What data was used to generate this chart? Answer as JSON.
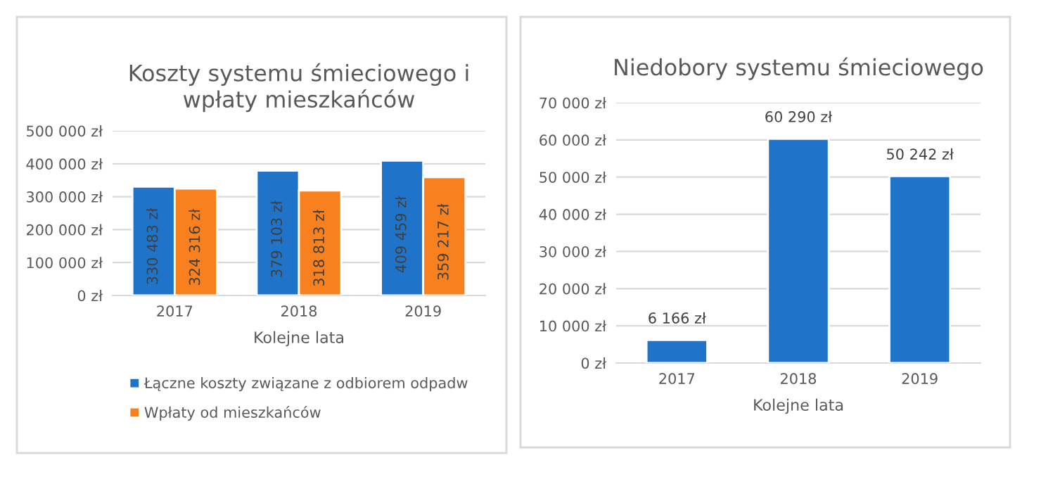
{
  "chart_data": [
    {
      "type": "bar",
      "title": "Koszty systemu śmieciowego i\nwpłaty mieszkańców",
      "xlabel": "Kolejne lata",
      "categories": [
        "2017",
        "2018",
        "2019"
      ],
      "series": [
        {
          "name": "Łączne koszty związane z odbiorem odpadw",
          "color": "#1f73c8",
          "values": [
            330483,
            379103,
            409459
          ],
          "value_labels": [
            "330 483 zł",
            "379 103 zł",
            "409 459 zł"
          ]
        },
        {
          "name": "Wpłaty od mieszkańców",
          "color": "#f8801f",
          "values": [
            324316,
            318813,
            359217
          ],
          "value_labels": [
            "324 316 zł",
            "318 813 zł",
            "359 217 zł"
          ]
        }
      ],
      "ylim": [
        0,
        500000
      ],
      "yticks": [
        {
          "value": 0,
          "label": "0 zł"
        },
        {
          "value": 100000,
          "label": "100 000 zł"
        },
        {
          "value": 200000,
          "label": "200 000 zł"
        },
        {
          "value": 300000,
          "label": "300 000 zł"
        },
        {
          "value": 400000,
          "label": "400 000 zł"
        },
        {
          "value": 500000,
          "label": "500 000 zł"
        }
      ],
      "grid": "y",
      "legend": "bottom"
    },
    {
      "type": "bar",
      "title": "Niedobory systemu śmieciowego",
      "xlabel": "Kolejne lata",
      "categories": [
        "2017",
        "2018",
        "2019"
      ],
      "series": [
        {
          "color": "#1f73c8",
          "values": [
            6166,
            60290,
            50242
          ],
          "value_labels": [
            "6 166 zł",
            "60 290 zł",
            "50 242 zł"
          ]
        }
      ],
      "ylim": [
        0,
        70000
      ],
      "yticks": [
        {
          "value": 0,
          "label": "0 zł"
        },
        {
          "value": 10000,
          "label": "10 000 zł"
        },
        {
          "value": 20000,
          "label": "20 000 zł"
        },
        {
          "value": 30000,
          "label": "30 000 zł"
        },
        {
          "value": 40000,
          "label": "40 000 zł"
        },
        {
          "value": 50000,
          "label": "50 000 zł"
        },
        {
          "value": 60000,
          "label": "60 000 zł"
        },
        {
          "value": 70000,
          "label": "70 000 zł"
        }
      ],
      "grid": "y"
    }
  ]
}
